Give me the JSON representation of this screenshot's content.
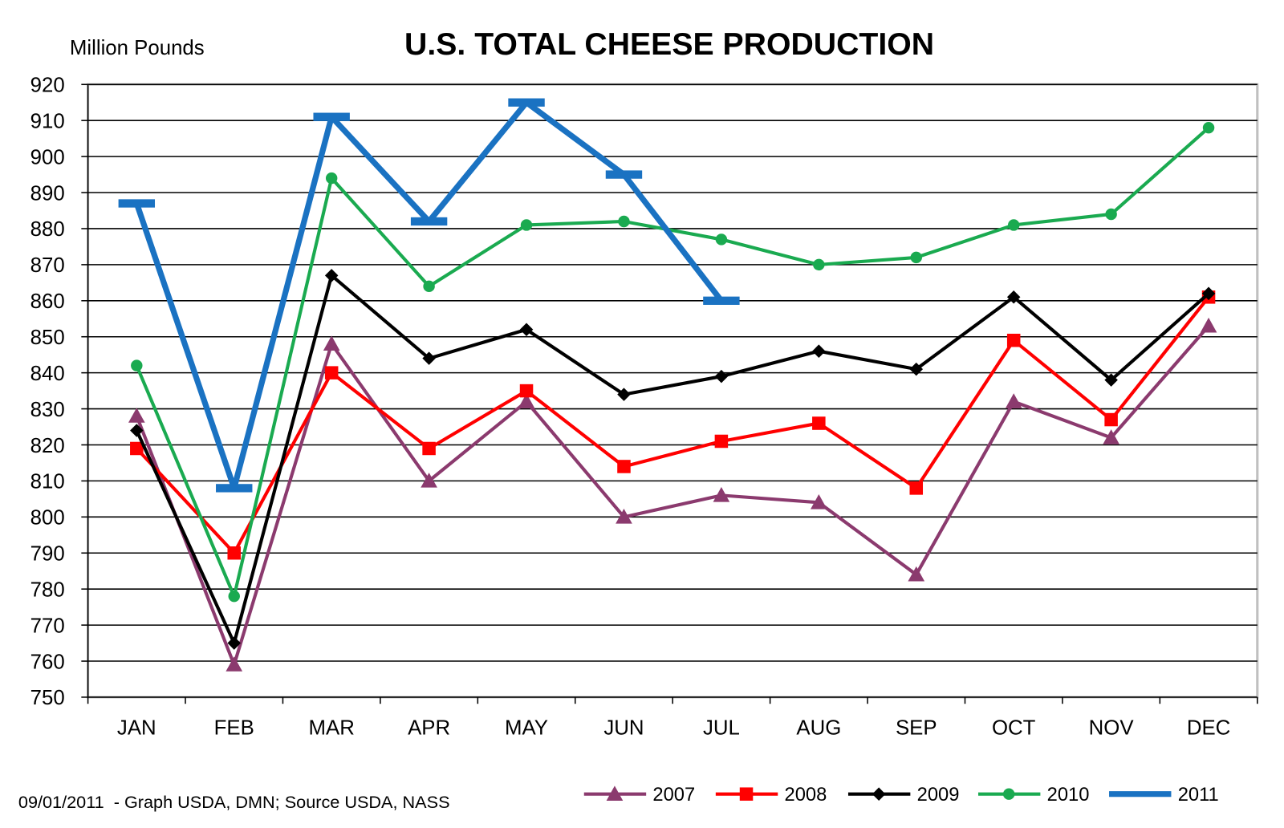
{
  "chart_data": {
    "type": "line",
    "title": "U.S. TOTAL CHEESE PRODUCTION",
    "ylabel": "Million Pounds",
    "xlabel": "",
    "ylim": [
      750,
      920
    ],
    "yticks": [
      920,
      910,
      900,
      890,
      880,
      870,
      860,
      850,
      840,
      830,
      820,
      810,
      800,
      790,
      780,
      770,
      760,
      750
    ],
    "grid": true,
    "legend_position": "bottom-right",
    "categories": [
      "JAN",
      "FEB",
      "MAR",
      "APR",
      "MAY",
      "JUN",
      "JUL",
      "AUG",
      "SEP",
      "OCT",
      "NOV",
      "DEC"
    ],
    "series": [
      {
        "name": "2007",
        "color": "#8B3A6E",
        "marker": "triangle",
        "values": [
          828,
          759,
          848,
          810,
          832,
          800,
          806,
          804,
          784,
          832,
          822,
          853
        ]
      },
      {
        "name": "2008",
        "color": "#FF0000",
        "marker": "square",
        "values": [
          819,
          790,
          840,
          819,
          835,
          814,
          821,
          826,
          808,
          849,
          827,
          861
        ]
      },
      {
        "name": "2009",
        "color": "#000000",
        "marker": "diamond",
        "values": [
          824,
          765,
          867,
          844,
          852,
          834,
          839,
          846,
          841,
          861,
          838,
          862
        ]
      },
      {
        "name": "2010",
        "color": "#1AAA50",
        "marker": "circle",
        "values": [
          842,
          778,
          894,
          864,
          881,
          882,
          877,
          870,
          872,
          881,
          884,
          908
        ]
      },
      {
        "name": "2011",
        "color": "#1A72C2",
        "marker": "dash",
        "values": [
          887,
          808,
          911,
          882,
          915,
          895,
          860,
          null,
          null,
          null,
          null,
          null
        ]
      }
    ],
    "footnote": "09/01/2011  - Graph USDA, DMN; Source USDA, NASS"
  }
}
